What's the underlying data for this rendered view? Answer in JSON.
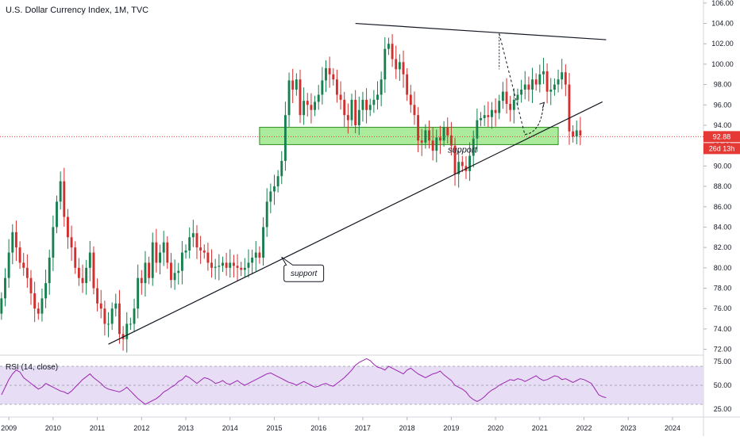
{
  "header": {
    "title": "U.S. Dollar Currency Index, 1M, TVC"
  },
  "rsi": {
    "title": "RSI (14, close)",
    "levels": [
      25,
      50,
      75
    ],
    "band": [
      30,
      70
    ],
    "tick_labels": [
      "75.00",
      "50.00",
      "25.00"
    ],
    "color": "#9c27b0",
    "band_color": "#e1d4f3",
    "values": [
      40,
      48,
      56,
      62,
      66,
      64,
      58,
      55,
      52,
      49,
      46,
      48,
      52,
      50,
      48,
      46,
      44,
      43,
      41,
      44,
      48,
      52,
      56,
      59,
      62,
      58,
      55,
      52,
      48,
      46,
      45,
      44,
      43,
      45,
      48,
      44,
      40,
      36,
      33,
      30,
      32,
      34,
      36,
      39,
      43,
      45,
      48,
      50,
      54,
      56,
      60,
      58,
      55,
      52,
      55,
      58,
      57,
      55,
      52,
      53,
      55,
      52,
      51,
      53,
      55,
      52,
      50,
      52,
      54,
      56,
      58,
      60,
      62,
      63,
      61,
      59,
      57,
      55,
      53,
      52,
      50,
      52,
      54,
      52,
      50,
      48,
      49,
      51,
      52,
      50,
      49,
      52,
      55,
      58,
      62,
      66,
      71,
      74,
      76,
      78,
      76,
      72,
      69,
      68,
      66,
      70,
      68,
      66,
      64,
      62,
      66,
      68,
      65,
      62,
      60,
      58,
      60,
      62,
      63,
      65,
      61,
      58,
      55,
      50,
      48,
      46,
      43,
      38,
      35,
      33,
      35,
      38,
      42,
      45,
      47,
      50,
      52,
      54,
      56,
      55,
      57,
      56,
      54,
      56,
      58,
      60,
      57,
      55,
      56,
      58,
      60,
      59,
      56,
      57,
      55,
      53,
      55,
      57,
      56,
      54,
      52,
      46,
      40,
      38,
      37
    ]
  },
  "annotations": {
    "support_zone_label": "support",
    "support_callout_label": "support"
  },
  "price_badge": {
    "label": "92.88",
    "countdown": "26d 13h",
    "color": "#e53935"
  },
  "colors": {
    "up": "#17804f",
    "down": "#d32f2f",
    "zone_fill": "#8ee67a",
    "zone_stroke": "#2e8b1e",
    "price_line": "#e53935"
  },
  "chart_data": {
    "type": "candlestick",
    "title": "U.S. Dollar Currency Index, 1M, TVC",
    "ylim": [
      71.5,
      106.3
    ],
    "y_ticks": [
      "72.00",
      "74.00",
      "76.00",
      "78.00",
      "80.00",
      "82.00",
      "84.00",
      "86.00",
      "88.00",
      "90.00",
      "92.00",
      "94.00",
      "96.00",
      "98.00",
      "100.00",
      "102.00",
      "104.00",
      "106.00"
    ],
    "x_range": [
      2008.8,
      2024.7
    ],
    "x_ticks": [
      "2009",
      "2010",
      "2011",
      "2012",
      "2013",
      "2014",
      "2015",
      "2016",
      "2017",
      "2018",
      "2019",
      "2020",
      "2021",
      "2022",
      "2023",
      "2024"
    ],
    "close": [
      77.0,
      79.0,
      81.5,
      83.5,
      82.0,
      80.5,
      80.0,
      79.0,
      77.5,
      76.0,
      75.5,
      77.0,
      78.5,
      81.0,
      84.0,
      86.5,
      88.5,
      85.0,
      83.0,
      82.0,
      80.0,
      79.0,
      78.5,
      80.0,
      81.5,
      78.0,
      76.5,
      76.0,
      74.5,
      74.5,
      76.0,
      76.5,
      73.5,
      73.0,
      74.5,
      74.5,
      76.0,
      79.0,
      78.5,
      80.5,
      79.0,
      82.5,
      80.5,
      81.5,
      82.5,
      80.5,
      78.8,
      79.5,
      79.7,
      81.5,
      81.7,
      83.0,
      83.4,
      82.0,
      81.7,
      81.5,
      80.5,
      80.0,
      80.1,
      80.2,
      80.5,
      80.0,
      80.5,
      80.2,
      80.0,
      79.8,
      80.0,
      80.5,
      81.0,
      81.5,
      81.0,
      84.0,
      86.5,
      87.5,
      88.0,
      89.0,
      90.5,
      95.0,
      98.4,
      97.5,
      98.5,
      95.0,
      96.4,
      96.0,
      95.5,
      96.3,
      97.0,
      98.4,
      99.6,
      99.0,
      98.5,
      97.0,
      96.5,
      95.0,
      94.5,
      96.5,
      94.0,
      95.5,
      96.5,
      95.5,
      96.0,
      96.5,
      97.0,
      98.5,
      101.5,
      102.0,
      100.5,
      99.5,
      100.2,
      99.0,
      97.0,
      96.0,
      95.0,
      92.5,
      92.3,
      93.5,
      92.5,
      91.5,
      92.8,
      92.5,
      93.8,
      93.0,
      92.0,
      89.2,
      90.4,
      90.0,
      89.5,
      91.0,
      92.7,
      94.5,
      94.7,
      95.0,
      94.8,
      95.5,
      95.2,
      96.4,
      97.3,
      96.1,
      95.5,
      96.5,
      97.0,
      97.5,
      98.0,
      97.5,
      98.5,
      98.0,
      99.0,
      99.3,
      97.3,
      97.5,
      98.0,
      98.5,
      99.2,
      98.0,
      93.4,
      92.9,
      93.5,
      93.0
    ],
    "trendline_top": {
      "points": [
        [
          "2016-11",
          104.0
        ],
        [
          "2022-07",
          102.4
        ]
      ]
    },
    "trendline_support": {
      "points": [
        [
          "2011-04",
          72.5
        ],
        [
          "2022-06",
          96.3
        ]
      ]
    },
    "support_zone": {
      "y_range": [
        92.1,
        93.8
      ],
      "x_range": [
        "2014-09",
        "2021-06"
      ]
    },
    "last_price": 92.88,
    "arrow_annotation": "up"
  }
}
